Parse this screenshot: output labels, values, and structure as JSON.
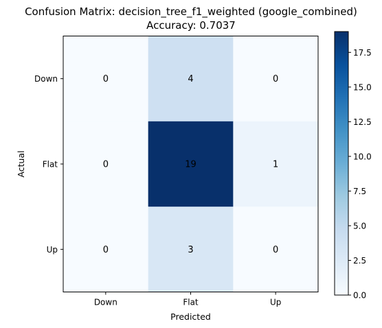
{
  "chart_data": {
    "type": "heatmap",
    "title": "Confusion Matrix: decision_tree_f1_weighted (google_combined)",
    "subtitle": "Accuracy: 0.7037",
    "xlabel": "Predicted",
    "ylabel": "Actual",
    "x_categories": [
      "Down",
      "Flat",
      "Up"
    ],
    "y_categories": [
      "Down",
      "Flat",
      "Up"
    ],
    "matrix": [
      [
        0,
        4,
        0
      ],
      [
        0,
        19,
        1
      ],
      [
        0,
        3,
        0
      ]
    ],
    "colormap": "Blues",
    "colorbar": {
      "range": [
        0,
        19
      ],
      "ticks": [
        "0.0",
        "2.5",
        "5.0",
        "7.5",
        "10.0",
        "12.5",
        "15.0",
        "17.5"
      ],
      "tick_values": [
        0,
        2.5,
        5,
        7.5,
        10,
        12.5,
        15,
        17.5
      ]
    }
  }
}
